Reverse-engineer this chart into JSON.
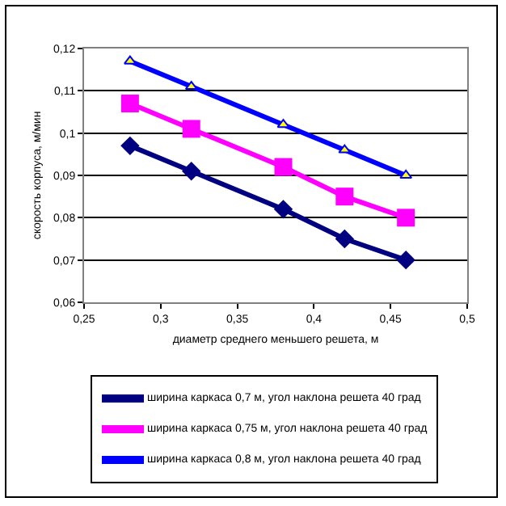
{
  "chart_data": {
    "type": "line",
    "xlabel": "диаметр среднего меньшего решета, м",
    "ylabel": "скорость корпуса, м/мин",
    "x": [
      0.28,
      0.32,
      0.38,
      0.42,
      0.46
    ],
    "series": [
      {
        "name": "ширина каркаса 0,7 м, угол наклона решета 40 град",
        "color": "#000080",
        "marker": "diamond",
        "values": [
          0.097,
          0.091,
          0.082,
          0.075,
          0.07
        ]
      },
      {
        "name": "ширина каркаса 0,75 м, угол наклона решета 40 град",
        "color": "#ff00ff",
        "marker": "square",
        "values": [
          0.107,
          0.101,
          0.092,
          0.085,
          0.08
        ]
      },
      {
        "name": "ширина каркаса 0,8 м, угол наклона решета 40 град",
        "color": "#0000ff",
        "marker": "triangle",
        "values": [
          0.117,
          0.111,
          0.102,
          0.096,
          0.09
        ]
      }
    ],
    "xlim": [
      0.25,
      0.5
    ],
    "xticks": [
      {
        "value": 0.25,
        "label": "0,25"
      },
      {
        "value": 0.3,
        "label": "0,3"
      },
      {
        "value": 0.35,
        "label": "0,35"
      },
      {
        "value": 0.4,
        "label": "0,4"
      },
      {
        "value": 0.45,
        "label": "0,45"
      },
      {
        "value": 0.5,
        "label": "0,5"
      }
    ],
    "ylim": [
      0.06,
      0.12
    ],
    "yticks": [
      {
        "value": 0.06,
        "label": "0,06"
      },
      {
        "value": 0.07,
        "label": "0,07"
      },
      {
        "value": 0.08,
        "label": "0,08"
      },
      {
        "value": 0.09,
        "label": "0,09"
      },
      {
        "value": 0.1,
        "label": "0,1"
      },
      {
        "value": 0.11,
        "label": "0,11"
      },
      {
        "value": 0.12,
        "label": "0,12"
      }
    ],
    "grid": "y",
    "legend": "bottom",
    "line_style": "solid"
  }
}
